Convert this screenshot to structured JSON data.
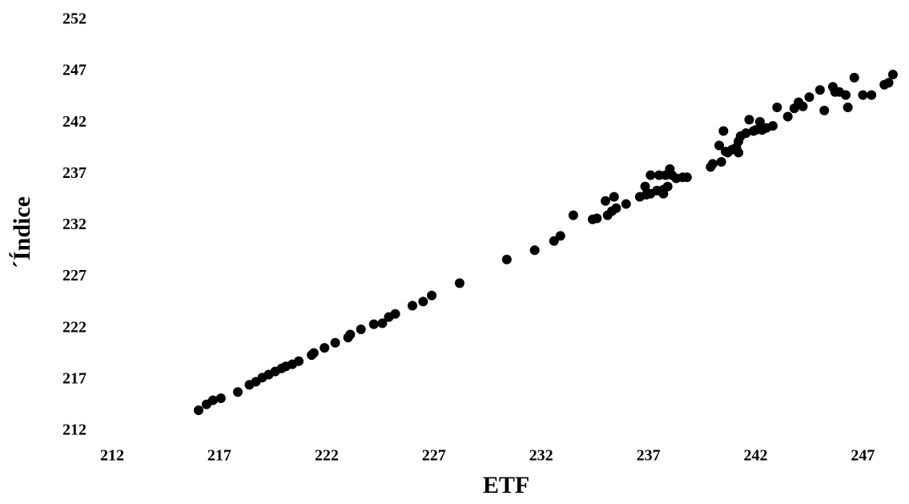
{
  "chart_data": {
    "type": "scatter",
    "x_label": "ETF",
    "y_label": "´Índice",
    "xlim": [
      212,
      249
    ],
    "ylim": [
      212,
      252
    ],
    "xticks": [
      212,
      217,
      222,
      227,
      232,
      237,
      242,
      247
    ],
    "yticks": [
      212,
      217,
      222,
      227,
      232,
      237,
      242,
      247,
      252
    ],
    "grid": false,
    "color": "#000000",
    "x": [
      216.03,
      216.4,
      216.7,
      217.07,
      217.86,
      218.4,
      218.7,
      219.0,
      219.3,
      219.6,
      219.9,
      220.1,
      220.4,
      220.7,
      221.3,
      221.4,
      221.9,
      222.4,
      223.0,
      223.1,
      223.6,
      224.2,
      224.6,
      224.9,
      225.2,
      226.0,
      226.5,
      226.9,
      228.2,
      230.4,
      231.7,
      232.6,
      232.9,
      233.5,
      234.4,
      234.6,
      235.0,
      235.1,
      235.3,
      235.4,
      235.5,
      235.96,
      236.6,
      236.85,
      236.9,
      237.1,
      237.1,
      237.4,
      237.5,
      237.7,
      237.8,
      237.7,
      237.9,
      238.0,
      238.1,
      238.3,
      238.6,
      238.8,
      239.9,
      240.0,
      240.3,
      240.4,
      240.5,
      240.6,
      240.7,
      240.9,
      241.1,
      241.2,
      241.2,
      241.3,
      241.55,
      241.7,
      241.9,
      242.0,
      242.2,
      242.3,
      242.5,
      242.8,
      243.0,
      243.5,
      243.8,
      244.0,
      244.2,
      244.5,
      245.0,
      245.2,
      245.6,
      245.7,
      245.9,
      246.2,
      246.3,
      246.6,
      247.0,
      247.4,
      248.0,
      248.2,
      248.4
    ],
    "y": [
      214.03,
      214.6,
      215.0,
      215.2,
      215.8,
      216.5,
      216.8,
      217.2,
      217.5,
      217.8,
      218.1,
      218.3,
      218.5,
      218.8,
      219.4,
      219.6,
      220.1,
      220.6,
      221.1,
      221.4,
      221.9,
      222.4,
      222.5,
      223.1,
      223.4,
      224.2,
      224.6,
      225.2,
      226.4,
      228.7,
      229.6,
      230.5,
      231.0,
      233.0,
      232.6,
      232.7,
      234.4,
      233.0,
      233.4,
      234.8,
      233.7,
      234.1,
      234.8,
      235.8,
      235.0,
      235.1,
      236.9,
      235.4,
      236.9,
      235.5,
      236.9,
      235.1,
      235.8,
      237.5,
      236.9,
      236.6,
      236.7,
      236.7,
      237.7,
      238.0,
      239.8,
      238.2,
      241.2,
      239.2,
      239.1,
      239.4,
      239.6,
      240.2,
      239.1,
      240.7,
      241.0,
      242.3,
      241.2,
      241.3,
      242.1,
      241.3,
      241.5,
      241.7,
      243.5,
      242.6,
      243.4,
      244.0,
      243.6,
      244.5,
      245.2,
      243.2,
      245.5,
      245.0,
      245.0,
      244.7,
      243.5,
      246.4,
      244.7,
      244.7,
      245.7,
      245.9,
      246.7
    ]
  }
}
